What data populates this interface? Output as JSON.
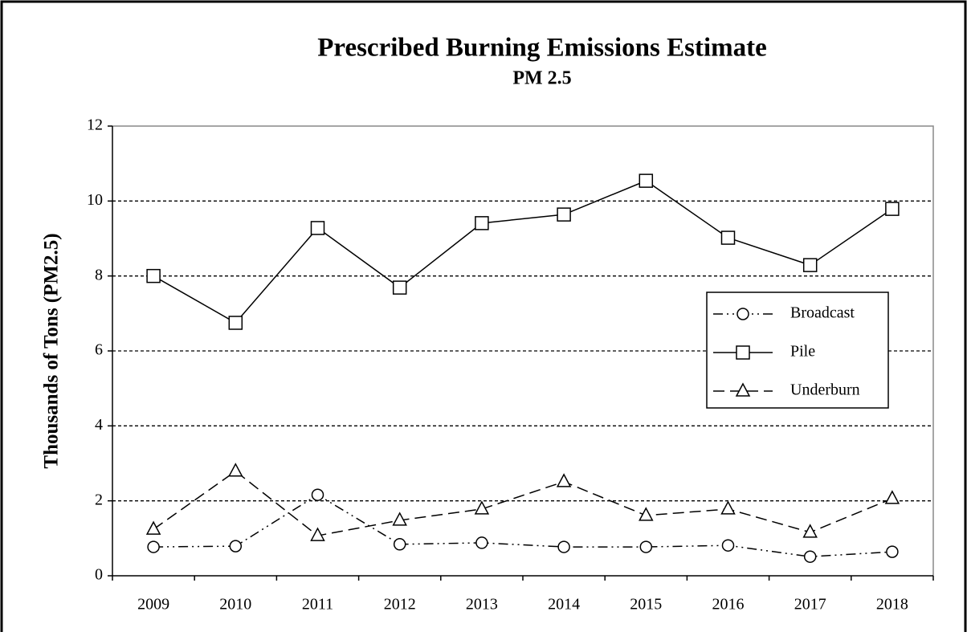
{
  "chart_data": {
    "type": "line",
    "title": "Prescribed Burning Emissions Estimate",
    "subtitle": "PM 2.5",
    "y_label": "Thousands of Tons (PM2.5)",
    "categories": [
      "2009",
      "2010",
      "2011",
      "2012",
      "2013",
      "2014",
      "2015",
      "2016",
      "2017",
      "2018"
    ],
    "series": [
      {
        "name": "Broadcast",
        "color": "#000000",
        "line_style": "dashdotdot",
        "marker": "circle",
        "values": [
          0.77,
          0.79,
          2.16,
          0.84,
          0.88,
          0.77,
          0.77,
          0.81,
          0.51,
          0.64
        ]
      },
      {
        "name": "Pile",
        "color": "#000000",
        "line_style": "solid",
        "marker": "square",
        "values": [
          8.0,
          6.75,
          9.28,
          7.69,
          9.41,
          9.64,
          10.54,
          9.02,
          8.29,
          9.79
        ]
      },
      {
        "name": "Underburn",
        "color": "#000000",
        "line_style": "dashed",
        "marker": "triangle",
        "values": [
          1.24,
          2.79,
          1.07,
          1.48,
          1.78,
          2.51,
          1.61,
          1.78,
          1.16,
          2.06
        ]
      }
    ],
    "ylim": [
      0,
      12
    ],
    "yticks": [
      0,
      2,
      4,
      6,
      8,
      10,
      12
    ],
    "grid": true,
    "legend": "right"
  }
}
